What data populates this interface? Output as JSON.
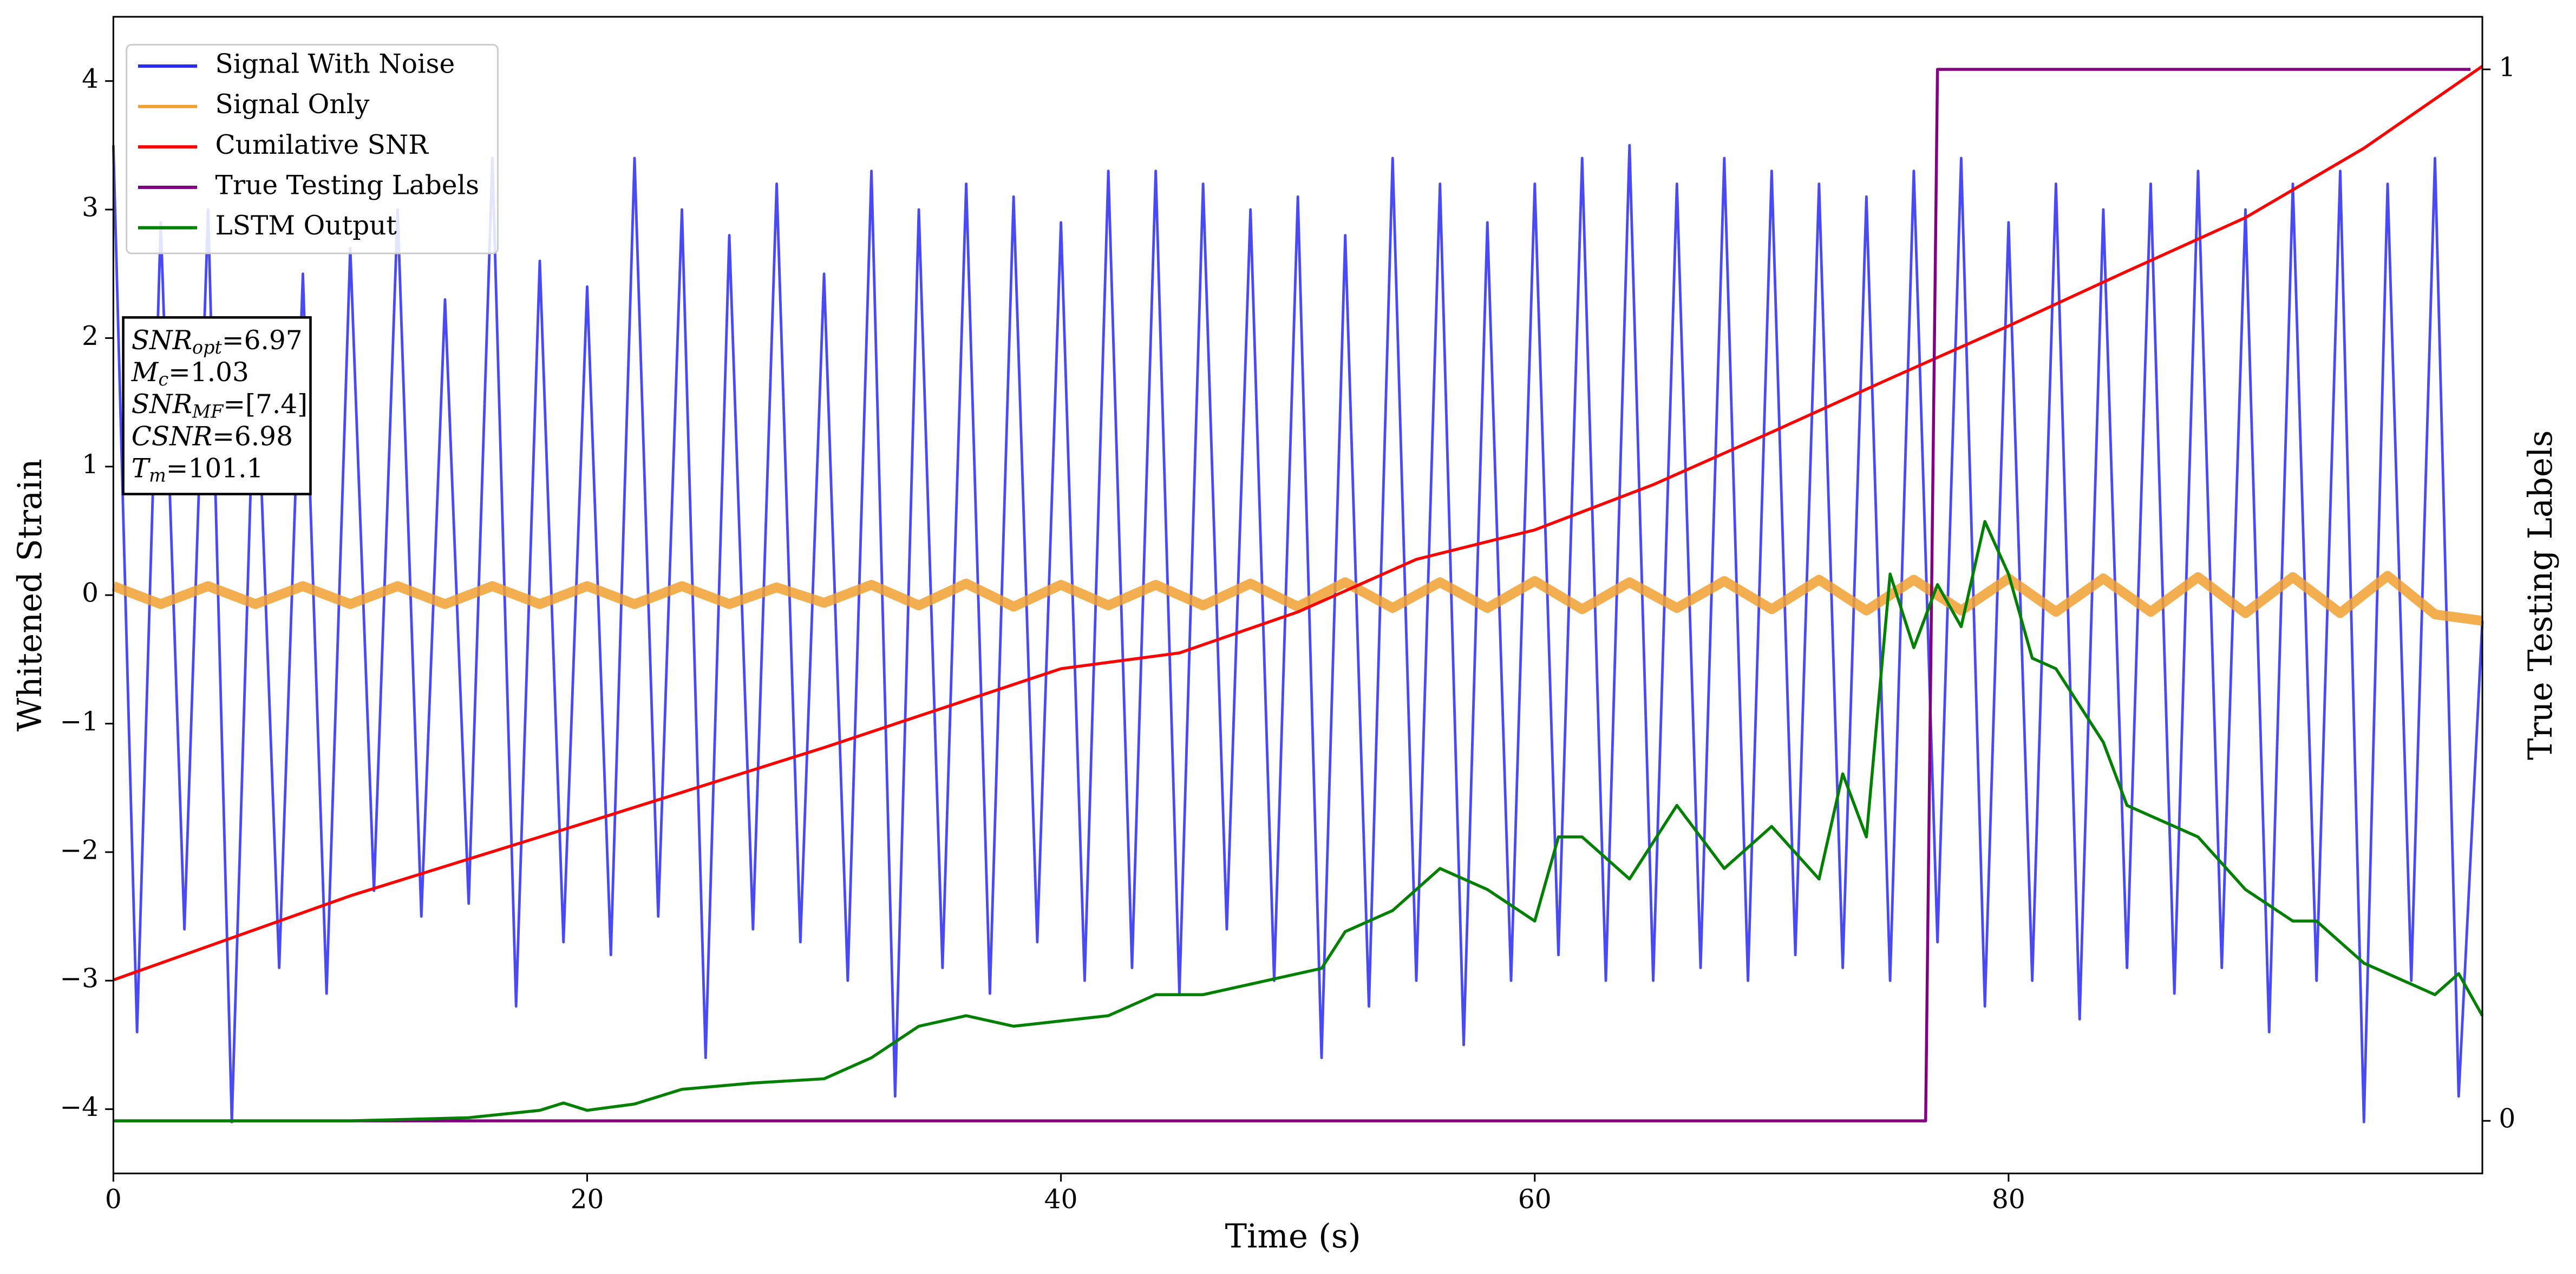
{
  "chart_data": {
    "type": "line",
    "xlabel": "Time (s)",
    "ylabel": "Whitened Strain",
    "y2label": "True Testing Labels",
    "xlim": [
      0,
      100
    ],
    "xticks": [
      0,
      20,
      40,
      60,
      80
    ],
    "ylim": [
      -4.5,
      4.5
    ],
    "yticks": [
      {
        "value": -4,
        "label": "−4"
      },
      {
        "value": -3,
        "label": "−3"
      },
      {
        "value": -2,
        "label": "−2"
      },
      {
        "value": -1,
        "label": "−1"
      },
      0,
      1,
      2,
      3,
      4
    ],
    "y2lim": [
      -0.05,
      1.05
    ],
    "y2ticks": [
      0,
      1
    ],
    "legend": "upper left",
    "annotations": [
      {
        "main": "SNR",
        "sub": "opt",
        "rest": "=6.97"
      },
      {
        "main": "M",
        "sub": "c",
        "rest": "=1.03"
      },
      {
        "main": "SNR",
        "sub": "MF",
        "rest": "=[7.4]"
      },
      {
        "main": "CSNR",
        "rest": "=6.98"
      },
      {
        "main": "T",
        "sub": "m",
        "rest": "=101.1"
      }
    ],
    "series": [
      {
        "name": "Signal With Noise",
        "color": "#2a2af2",
        "x": [
          0,
          1,
          2,
          3,
          4,
          5,
          6,
          7,
          8,
          9,
          10,
          11,
          12,
          13,
          14,
          15,
          16,
          17,
          18,
          19,
          20,
          21,
          22,
          23,
          24,
          25,
          26,
          27,
          28,
          29,
          30,
          31,
          32,
          33,
          34,
          35,
          36,
          37,
          38,
          39,
          40,
          41,
          42,
          43,
          44,
          45,
          46,
          47,
          48,
          49,
          50,
          51,
          52,
          53,
          54,
          55,
          56,
          57,
          58,
          59,
          60,
          61,
          62,
          63,
          64,
          65,
          66,
          67,
          68,
          69,
          70,
          71,
          72,
          73,
          74,
          75,
          76,
          77,
          78,
          79,
          80,
          81,
          82,
          83,
          84,
          85,
          86,
          87,
          88,
          89,
          90,
          91,
          92,
          93,
          94,
          95,
          96,
          97,
          98,
          99,
          100
        ],
        "values": [
          3.5,
          -3.4,
          2.9,
          -2.6,
          3.0,
          -4.1,
          2.1,
          -2.9,
          2.5,
          -3.1,
          2.7,
          -2.3,
          3.0,
          -2.5,
          2.3,
          -2.4,
          3.4,
          -3.2,
          2.6,
          -2.7,
          2.4,
          -2.8,
          3.4,
          -2.5,
          3.0,
          -3.6,
          2.8,
          -2.6,
          3.2,
          -2.7,
          2.5,
          -3.0,
          3.3,
          -3.9,
          3.0,
          -2.9,
          3.2,
          -3.1,
          3.1,
          -2.7,
          2.9,
          -3.0,
          3.3,
          -2.9,
          3.3,
          -3.1,
          3.2,
          -2.6,
          3.0,
          -3.0,
          3.1,
          -3.6,
          2.8,
          -3.2,
          3.4,
          -3.0,
          3.2,
          -3.5,
          2.9,
          -3.0,
          3.2,
          -2.8,
          3.4,
          -3.0,
          3.5,
          -3.0,
          3.2,
          -2.9,
          3.4,
          -3.0,
          3.3,
          -2.8,
          3.2,
          -2.9,
          3.1,
          -3.0,
          3.3,
          -2.7,
          3.4,
          -3.2,
          2.9,
          -3.0,
          3.2,
          -3.3,
          3.0,
          -2.9,
          3.2,
          -3.1,
          3.3,
          -2.9,
          3.0,
          -3.4,
          3.2,
          -3.0,
          3.3,
          -4.1,
          3.2,
          -3.0,
          3.4,
          -3.9,
          -0.2
        ]
      },
      {
        "name": "Signal Only",
        "color": "#f0a030",
        "x": [
          0,
          2,
          4,
          6,
          8,
          10,
          12,
          14,
          16,
          18,
          20,
          22,
          24,
          26,
          28,
          30,
          32,
          34,
          36,
          38,
          40,
          42,
          44,
          46,
          48,
          50,
          52,
          54,
          56,
          58,
          60,
          62,
          64,
          66,
          68,
          70,
          72,
          74,
          76,
          78,
          80,
          82,
          84,
          86,
          88,
          90,
          92,
          94,
          96,
          98,
          100
        ],
        "values": [
          0.07,
          -0.07,
          0.07,
          -0.07,
          0.07,
          -0.07,
          0.07,
          -0.07,
          0.07,
          -0.07,
          0.07,
          -0.07,
          0.07,
          -0.07,
          0.06,
          -0.06,
          0.08,
          -0.08,
          0.09,
          -0.09,
          0.08,
          -0.08,
          0.08,
          -0.08,
          0.09,
          -0.09,
          0.1,
          -0.1,
          0.1,
          -0.1,
          0.11,
          -0.11,
          0.1,
          -0.1,
          0.11,
          -0.11,
          0.12,
          -0.12,
          0.12,
          -0.12,
          0.13,
          -0.13,
          0.13,
          -0.13,
          0.14,
          -0.14,
          0.14,
          -0.14,
          0.15,
          -0.15,
          -0.2
        ]
      },
      {
        "name": "Cumilative SNR",
        "color": "#ff0000",
        "axis": "y2",
        "x": [
          0,
          10,
          20,
          30,
          40,
          45,
          50,
          55,
          60,
          65,
          70,
          75,
          80,
          85,
          90,
          95,
          100
        ],
        "values": [
          0.134,
          0.214,
          0.284,
          0.355,
          0.43,
          0.445,
          0.484,
          0.534,
          0.562,
          0.605,
          0.655,
          0.706,
          0.756,
          0.808,
          0.859,
          0.925,
          1.003
        ]
      },
      {
        "name": "True Testing Labels",
        "color": "#800080",
        "axis": "y2",
        "x": [
          0,
          76.5,
          77,
          99.5
        ],
        "values": [
          0,
          0,
          1,
          1
        ]
      },
      {
        "name": "LSTM Output",
        "color": "#008000",
        "axis": "y2",
        "x": [
          0,
          10,
          15,
          18,
          19,
          20,
          22,
          24,
          27,
          30,
          32,
          34,
          36,
          38,
          40,
          42,
          44,
          46,
          48,
          50,
          51,
          52,
          54,
          56,
          58,
          60,
          61,
          62,
          64,
          66,
          68,
          70,
          72,
          73,
          74,
          75,
          76,
          77,
          78,
          79,
          80,
          81,
          82,
          84,
          85,
          86,
          88,
          90,
          92,
          93,
          94,
          95,
          97,
          98,
          99,
          100
        ],
        "values": [
          0,
          0,
          0.003,
          0.01,
          0.017,
          0.01,
          0.016,
          0.03,
          0.036,
          0.04,
          0.06,
          0.09,
          0.1,
          0.09,
          0.095,
          0.1,
          0.12,
          0.12,
          0.13,
          0.14,
          0.145,
          0.18,
          0.2,
          0.24,
          0.22,
          0.19,
          0.27,
          0.27,
          0.23,
          0.3,
          0.24,
          0.28,
          0.23,
          0.33,
          0.27,
          0.52,
          0.45,
          0.51,
          0.47,
          0.57,
          0.52,
          0.44,
          0.43,
          0.36,
          0.3,
          0.29,
          0.27,
          0.22,
          0.19,
          0.19,
          0.17,
          0.15,
          0.13,
          0.12,
          0.14,
          0.1
        ]
      }
    ]
  }
}
